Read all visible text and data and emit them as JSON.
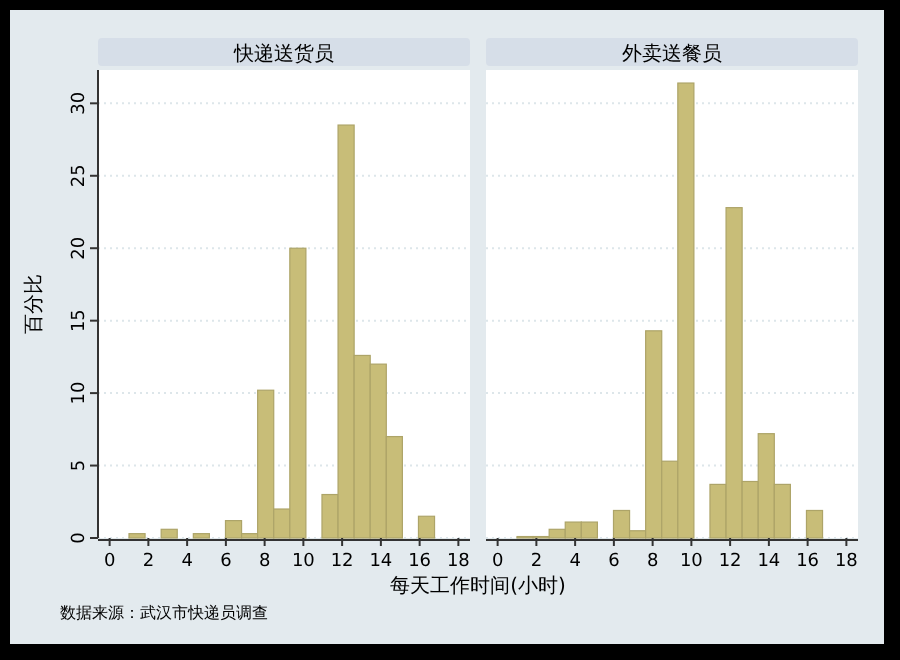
{
  "chart_data": [
    {
      "type": "histogram",
      "title": "快递送货员",
      "ylabel": "百分比",
      "xlabel": "每天工作时间(小时)",
      "annotations": [
        "数据来源：武汉市快递员调查"
      ],
      "bins": [
        1,
        1.83,
        2.66,
        3.49,
        4.32,
        5.15,
        5.98,
        6.81,
        7.64,
        8.47,
        9.3,
        10.13,
        10.96,
        11.79,
        12.62,
        13.45,
        14.28,
        15.11,
        15.94,
        16.77
      ],
      "values": [
        0.3,
        0,
        0.6,
        0,
        0.3,
        0,
        1.2,
        0.3,
        10.2,
        2.0,
        20.0,
        0,
        3.0,
        28.5,
        12.6,
        12.0,
        7.0,
        0,
        1.5
      ],
      "color": "#c8bd78",
      "xlim": [
        -0.6,
        18.6
      ],
      "xticks": [
        0,
        2,
        4,
        6,
        8,
        10,
        12,
        14,
        16,
        18
      ],
      "ylim": [
        0,
        32.3
      ],
      "yticks": [
        0,
        5,
        10,
        15,
        20,
        25,
        30
      ],
      "grid": "y"
    },
    {
      "type": "histogram",
      "title": "外卖送餐员",
      "tick_labels": "x",
      "bins": [
        1,
        1.83,
        2.66,
        3.49,
        4.32,
        5.15,
        5.98,
        6.81,
        7.64,
        8.47,
        9.3,
        10.13,
        10.96,
        11.79,
        12.62,
        13.45,
        14.28,
        15.11,
        15.94,
        16.77
      ],
      "values": [
        0.1,
        0.1,
        0.6,
        1.1,
        1.1,
        0,
        1.9,
        0.5,
        14.3,
        5.3,
        31.4,
        0,
        3.7,
        22.8,
        3.9,
        7.2,
        3.7,
        0,
        1.9
      ],
      "color": "#c8bd78",
      "xlim": [
        -0.6,
        18.6
      ],
      "xticks": [
        0,
        2,
        4,
        6,
        8,
        10,
        12,
        14,
        16,
        18
      ],
      "ylim": [
        0,
        32.3
      ],
      "yticks": [
        0,
        5,
        10,
        15,
        20,
        25,
        30
      ],
      "grid": "y"
    }
  ]
}
